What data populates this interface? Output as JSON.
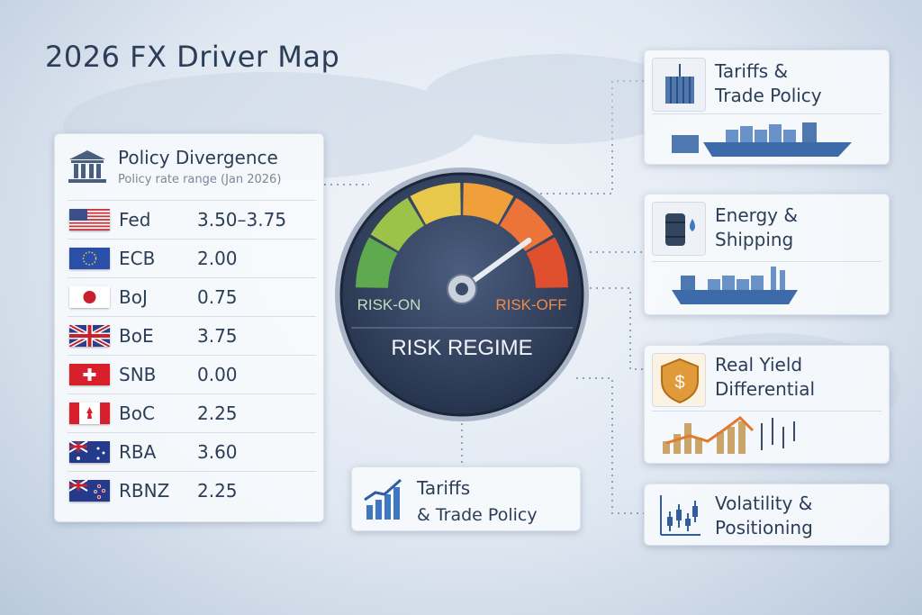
{
  "title": "2026 FX Driver Map",
  "policy": {
    "title": "Policy Divergence",
    "subtitle": "Policy rate range (Jan 2026)",
    "rows": [
      {
        "bank": "Fed",
        "rate": "3.50–3.75",
        "flag": "us"
      },
      {
        "bank": "ECB",
        "rate": "2.00",
        "flag": "eu"
      },
      {
        "bank": "BoJ",
        "rate": "0.75",
        "flag": "jp"
      },
      {
        "bank": "BoE",
        "rate": "3.75",
        "flag": "uk"
      },
      {
        "bank": "SNB",
        "rate": "0.00",
        "flag": "ch"
      },
      {
        "bank": "BoC",
        "rate": "2.25",
        "flag": "ca"
      },
      {
        "bank": "RBA",
        "rate": "3.60",
        "flag": "au"
      },
      {
        "bank": "RBNZ",
        "rate": "2.25",
        "flag": "nz"
      }
    ]
  },
  "gauge": {
    "left_label": "RISK-ON",
    "right_label": "RISK-OFF",
    "title": "RISK REGIME",
    "needle_fraction": 0.8,
    "segment_colors": [
      "#5faa4e",
      "#9cc24a",
      "#e8c84a",
      "#f0a03a",
      "#ec7438",
      "#e0502e"
    ]
  },
  "cards": {
    "tariffs_top": {
      "line1": "Tariffs &",
      "line2": "Trade Policy",
      "icon": "shipping-container-icon"
    },
    "energy": {
      "line1": "Energy &",
      "line2": "Shipping",
      "icon": "oil-barrel-icon"
    },
    "real_yield": {
      "line1": "Real Yield",
      "line2": "Differential",
      "icon": "dollar-shield-icon"
    },
    "volatility": {
      "line1": "Volatility &",
      "line2": "Positioning",
      "icon": "candlestick-icon"
    },
    "tariffs_bottom": {
      "line1": "Tariffs",
      "line2": "& Trade Policy",
      "icon": "bar-chart-icon"
    }
  },
  "colors": {
    "text": "#2c3d58",
    "gauge_face": "#2f3e5c",
    "risk_on": "#bfe0c0",
    "risk_off": "#f08a48"
  }
}
